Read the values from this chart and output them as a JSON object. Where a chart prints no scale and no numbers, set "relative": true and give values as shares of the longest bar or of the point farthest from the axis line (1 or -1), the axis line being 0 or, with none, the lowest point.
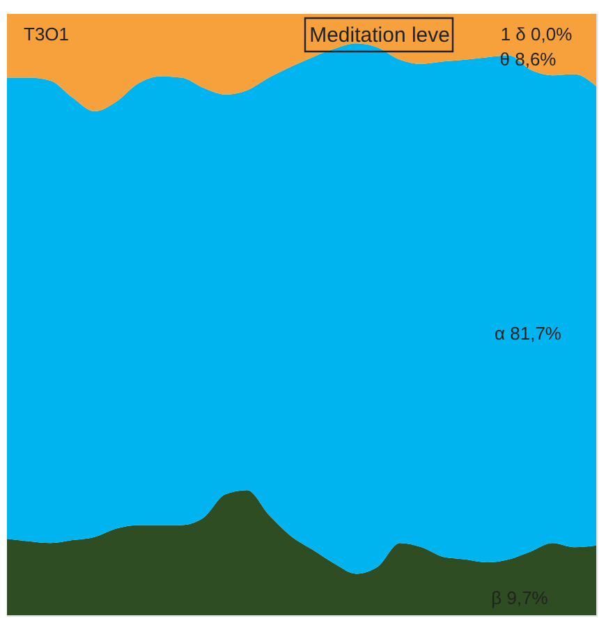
{
  "chart_data": {
    "type": "area",
    "title": "T3O1",
    "subtitle": "Meditation leve",
    "relative": true,
    "stacked": true,
    "categories": [
      null,
      null,
      null,
      null,
      null,
      null,
      null,
      null,
      null,
      null,
      null,
      null,
      null,
      null,
      null,
      null,
      null,
      null,
      null,
      null,
      null,
      null,
      null,
      null,
      null,
      null,
      null,
      null
    ],
    "series": [
      {
        "color": "#2e4d22",
        "values": [
          0.127,
          0.123,
          0.12,
          0.125,
          0.13,
          0.144,
          0.15,
          0.15,
          0.15,
          0.162,
          0.201,
          0.208,
          0.167,
          0.132,
          0.109,
          0.086,
          0.069,
          0.081,
          0.12,
          0.113,
          0.097,
          0.093,
          0.088,
          0.093,
          0.106,
          0.12,
          0.113,
          0.116
        ]
      },
      {
        "color": "#00b5ef",
        "values": [
          0.767,
          0.771,
          0.769,
          0.736,
          0.708,
          0.71,
          0.734,
          0.746,
          0.744,
          0.715,
          0.665,
          0.665,
          0.727,
          0.78,
          0.819,
          0.856,
          0.882,
          0.863,
          0.804,
          0.804,
          0.824,
          0.831,
          0.84,
          0.838,
          0.801,
          0.778,
          0.787,
          0.764
        ]
      },
      {
        "color": "#f7a13c",
        "values": [
          0.106,
          0.106,
          0.111,
          0.139,
          0.162,
          0.146,
          0.116,
          0.104,
          0.106,
          0.123,
          0.134,
          0.127,
          0.106,
          0.088,
          0.072,
          0.058,
          0.049,
          0.056,
          0.076,
          0.083,
          0.079,
          0.076,
          0.072,
          0.069,
          0.093,
          0.102,
          0.1,
          0.12
        ]
      }
    ],
    "annotations": [
      "1 δ 0,0%",
      "θ 8,6%",
      "α 81,7%",
      "β 9,7%"
    ]
  }
}
